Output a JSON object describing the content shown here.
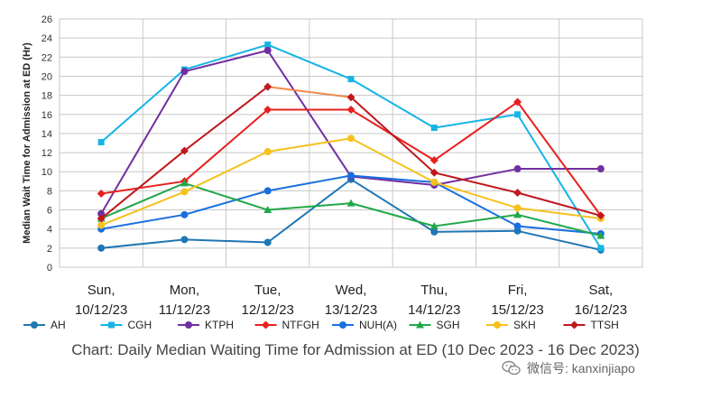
{
  "chart_data": {
    "type": "line",
    "title": "",
    "ylabel": "Median Wait Time for Admission at ED (Hr)",
    "xlabel": "",
    "ylim": [
      0,
      26
    ],
    "yticks": [
      0,
      2,
      4,
      6,
      8,
      10,
      12,
      14,
      16,
      18,
      20,
      22,
      24,
      26
    ],
    "grid": true,
    "legend_position": "bottom",
    "categories": [
      {
        "day": "Sun,",
        "date": "10/12/23"
      },
      {
        "day": "Mon,",
        "date": "11/12/23"
      },
      {
        "day": "Tue,",
        "date": "12/12/23"
      },
      {
        "day": "Wed,",
        "date": "13/12/23"
      },
      {
        "day": "Thu,",
        "date": "14/12/23"
      },
      {
        "day": "Fri,",
        "date": "15/12/23"
      },
      {
        "day": "Sat,",
        "date": "16/12/23"
      }
    ],
    "series": [
      {
        "name": "AH",
        "color": "#1f77b4",
        "marker": "circle",
        "values": [
          2.0,
          2.9,
          2.6,
          9.2,
          3.7,
          3.8,
          1.8
        ]
      },
      {
        "name": "CGH",
        "color": "#17b4e6",
        "marker": "square",
        "values": [
          13.1,
          20.7,
          23.3,
          19.7,
          14.6,
          16.0,
          2.0
        ]
      },
      {
        "name": "KTPH",
        "color": "#7030a0",
        "marker": "circle",
        "values": [
          5.6,
          20.5,
          22.7,
          9.5,
          8.6,
          10.3,
          10.3
        ]
      },
      {
        "name": "NTFGH",
        "color": "#e8201e",
        "marker": "diamond",
        "values": [
          7.7,
          9.0,
          16.5,
          16.5,
          11.2,
          17.3,
          5.4
        ]
      },
      {
        "name": "NUH(A)",
        "color": "#1a6fdf",
        "marker": "circle",
        "values": [
          4.0,
          5.5,
          8.0,
          9.6,
          8.9,
          4.3,
          3.5
        ]
      },
      {
        "name": "SGH",
        "color": "#22a84a",
        "marker": "triangle",
        "values": [
          5.1,
          8.8,
          6.0,
          6.7,
          4.3,
          5.5,
          3.3
        ]
      },
      {
        "name": "SKH",
        "color": "#f7c11d",
        "marker": "circle",
        "values": [
          4.4,
          7.9,
          12.1,
          13.5,
          8.9,
          6.2,
          5.1
        ]
      },
      {
        "name": "TTSH",
        "color": "#c0181e",
        "marker": "diamond",
        "values": [
          5.1,
          12.2,
          18.9,
          17.8,
          9.9,
          7.8,
          5.4
        ]
      }
    ],
    "segment_color_overrides": [
      {
        "series": "TTSH",
        "segment_index": 2,
        "color": "#f08a4b"
      }
    ]
  },
  "caption": "Chart: Daily Median Waiting Time for Admission at ED (10 Dec 2023 - 16 Dec 2023)",
  "watermark": "微信号: kanxinjiapo"
}
